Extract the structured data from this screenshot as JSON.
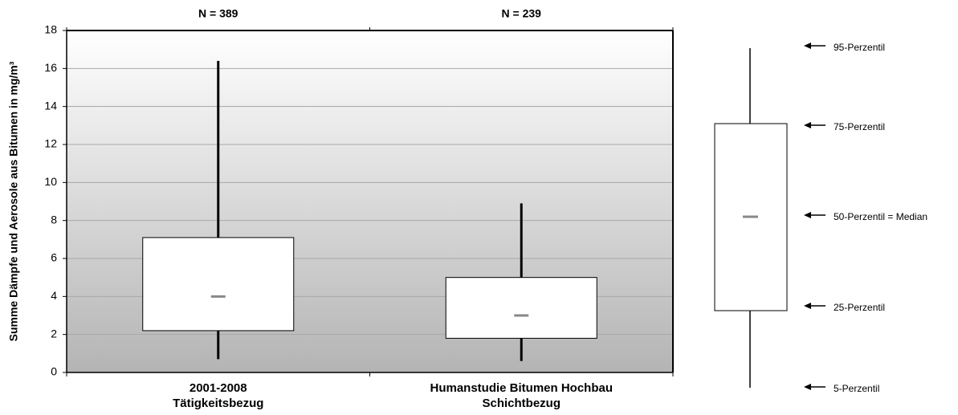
{
  "chart_data": {
    "type": "box",
    "y_label": "Summe Dämpfe und Aerosole aus Bitumen in  mg/m³",
    "categories": [
      [
        "2001-2008",
        "Tätigkeitsbezug"
      ],
      [
        "Humanstudie Bitumen Hochbau",
        "Schichtbezug"
      ]
    ],
    "n_labels": [
      "N = 389",
      "N = 239"
    ],
    "boxes": [
      {
        "whislo": 0.7,
        "q1": 2.2,
        "med": 4.0,
        "q3": 7.1,
        "whishi": 16.4
      },
      {
        "whislo": 0.6,
        "q1": 1.8,
        "med": 3.0,
        "q3": 5.0,
        "whishi": 8.9
      }
    ],
    "ylim": [
      0,
      18
    ],
    "yticks": [
      0,
      2,
      4,
      6,
      8,
      10,
      12,
      14,
      16,
      18
    ],
    "grid": true,
    "box_color": "#ffffff",
    "whisker_color": "#000000",
    "median_color": "#888888",
    "key_labels": [
      "95-Perzentil",
      "75-Perzentil",
      "50-Perzentil = Median",
      "25-Perzentil",
      "5-Perzentil"
    ]
  }
}
